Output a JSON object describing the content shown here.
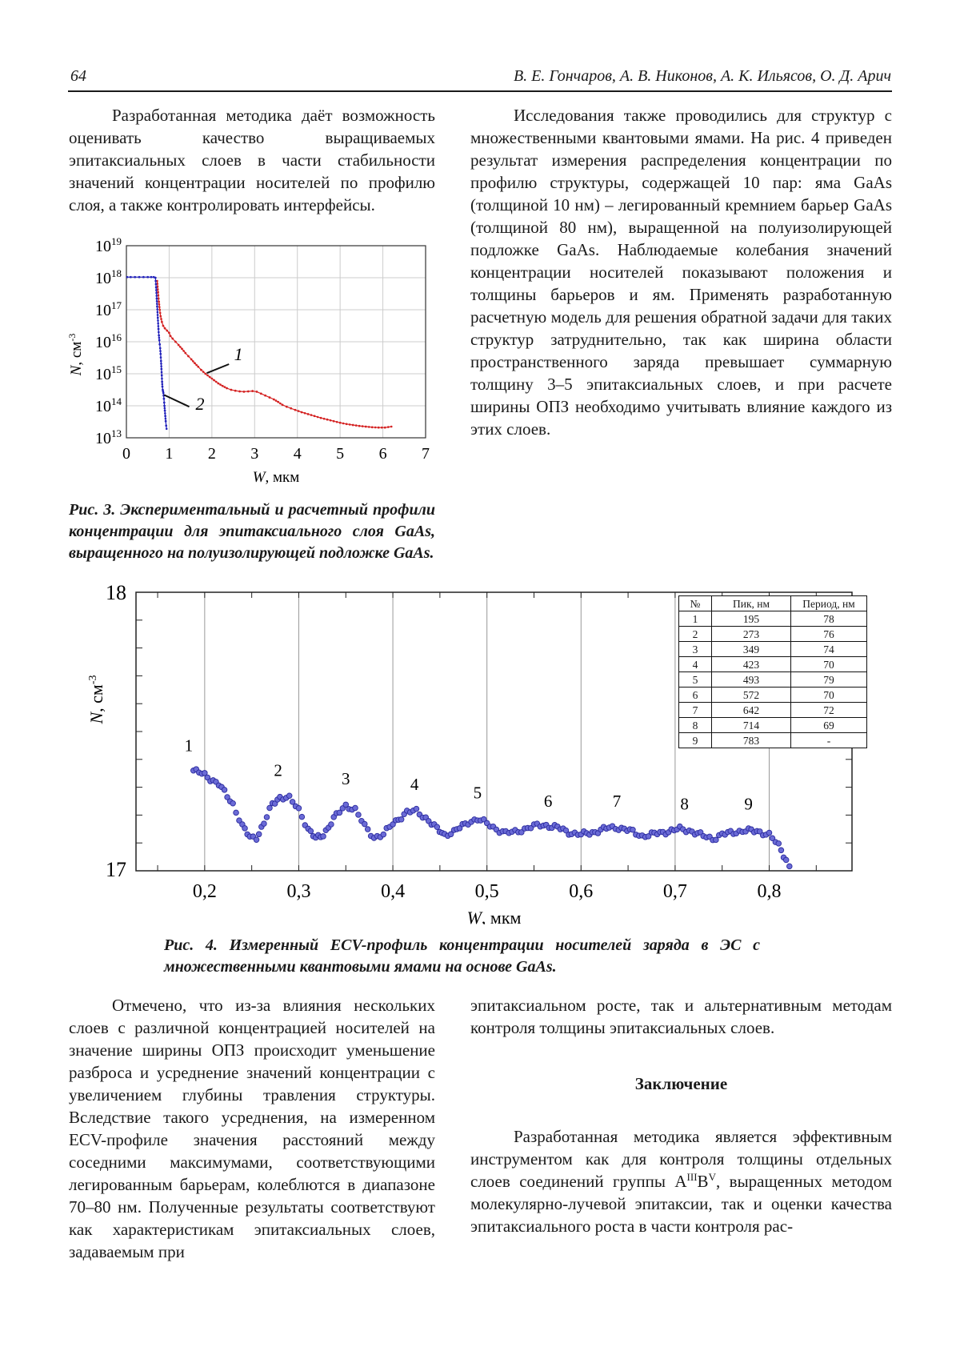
{
  "header": {
    "page_number": "64",
    "authors": "В. Е. Гончаров, А. В. Никонов, А. К. Ильясов, О. Д. Арич"
  },
  "sections": {
    "left_top": {
      "text": "Разработанная методика даёт возможность оценивать качество выращиваемых эпитаксиальных слоев в части стабильности значений концентрации носителей по профилю слоя, а также контролировать интерфейсы."
    },
    "right_top": {
      "text": "Исследования также проводились для структур с множественными квантовыми ямами. На рис. 4 приведен результат измерения распределения концентрации по профилю структуры, содержащей 10 пар: яма GaAs (толщиной 10 нм) – легированный кремнием барьер GaAs (толщиной 80 нм), выращенной на полуизолирующей подложке GaAs. Наблюдаемые колебания значений концентрации носителей показывают положения и толщины барьеров и ям. Применять разработанную расчетную модель для решения обратной задачи для таких структур затруднительно, так как ширина области пространственного заряда превышает суммарную толщину 3–5 эпитаксиальных слоев, и при расчете ширины ОПЗ необходимо учитывать влияние каждого из этих слоев."
    },
    "fig3_caption": "Рис. 3. Экспериментальный и расчетный профили концентрации для эпитаксиального слоя GaAs, выращенного на полуизолирующей подложке GaAs.",
    "fig4_caption": "Рис. 4. Измеренный ECV-профиль концентрации носителей заряда в ЭС с множественными квантовыми ямами на основе GaAs.",
    "left_bottom": {
      "text": "Отмечено, что из-за влияния нескольких слоев с различной концентрацией носителей на значение ширины ОПЗ происходит уменьшение разброса и усреднение значений концентрации с увеличением глубины травления структуры. Вследствие такого усреднения, на измеренном ECV-профиле значения расстояний между соседними максимумами, соответствующими легированным барьерам, колеблются в диапазоне 70–80 нм. Полученные результаты соответствуют как характеристикам эпитаксиальных слоев, задаваемым при"
    },
    "right_bottom_cont": {
      "text": "эпитаксиальном росте, так и альтернативным методам контроля толщины эпитаксиальных слоев."
    },
    "conclusion": {
      "heading": "Заключение",
      "pre": "Разработанная методика является эффективным инструментом как для контроля толщины отдельных слоев соединений группы А",
      "sup1": "III",
      "mid": "В",
      "sup2": "V",
      "post": ", выращенных методом молекулярно-лучевой эпитаксии, так и оценки качества эпитаксиального роста в части контроля рас-"
    }
  },
  "chart_data": [
    {
      "id": "fig3",
      "type": "line",
      "title": "Экспериментальный и расчетный профили концентрации (эпитаксиальный слой GaAs)",
      "xlabel": "W, мкм",
      "ylabel": "N, см⁻³",
      "xlabel_parts": {
        "italic": "W",
        "normal": ", мкм"
      },
      "ylabel_parts": {
        "italic": "N",
        "normal": ", см",
        "sup": "-3"
      },
      "xlim": [
        0,
        7
      ],
      "x_ticks": [
        0,
        1,
        2,
        3,
        4,
        5,
        6,
        7
      ],
      "ylog_exponents": [
        19,
        18,
        17,
        16,
        15,
        14,
        13
      ],
      "grid": true,
      "grid_color": "#cccccc",
      "series": [
        {
          "name": "1",
          "color": "#d42222",
          "points_x_logN": [
            [
              0.72,
              17.9
            ],
            [
              0.74,
              17.55
            ],
            [
              0.76,
              17.25
            ],
            [
              0.78,
              17.0
            ],
            [
              0.8,
              16.8
            ],
            [
              0.83,
              16.62
            ],
            [
              0.86,
              16.5
            ],
            [
              0.9,
              16.42
            ],
            [
              0.95,
              16.35
            ],
            [
              1.0,
              16.28
            ],
            [
              1.03,
              16.18
            ],
            [
              1.08,
              16.1
            ],
            [
              1.15,
              16.0
            ],
            [
              1.22,
              15.9
            ],
            [
              1.3,
              15.78
            ],
            [
              1.38,
              15.65
            ],
            [
              1.45,
              15.55
            ],
            [
              1.52,
              15.45
            ],
            [
              1.6,
              15.33
            ],
            [
              1.68,
              15.22
            ],
            [
              1.75,
              15.12
            ],
            [
              1.85,
              15.0
            ],
            [
              1.95,
              14.9
            ],
            [
              2.05,
              14.8
            ],
            [
              2.15,
              14.7
            ],
            [
              2.25,
              14.62
            ],
            [
              2.35,
              14.55
            ],
            [
              2.45,
              14.5
            ],
            [
              2.55,
              14.47
            ],
            [
              2.65,
              14.45
            ],
            [
              2.75,
              14.44
            ],
            [
              2.85,
              14.45
            ],
            [
              2.95,
              14.46
            ],
            [
              3.05,
              14.44
            ],
            [
              3.15,
              14.38
            ],
            [
              3.25,
              14.32
            ],
            [
              3.35,
              14.26
            ],
            [
              3.45,
              14.2
            ],
            [
              3.55,
              14.12
            ],
            [
              3.65,
              14.03
            ],
            [
              3.75,
              13.97
            ],
            [
              3.85,
              13.92
            ],
            [
              3.95,
              13.87
            ],
            [
              4.1,
              13.8
            ],
            [
              4.25,
              13.74
            ],
            [
              4.4,
              13.68
            ],
            [
              4.55,
              13.62
            ],
            [
              4.7,
              13.57
            ],
            [
              4.85,
              13.52
            ],
            [
              5.0,
              13.47
            ],
            [
              5.15,
              13.43
            ],
            [
              5.3,
              13.4
            ],
            [
              5.45,
              13.37
            ],
            [
              5.6,
              13.35
            ],
            [
              5.75,
              13.33
            ],
            [
              5.9,
              13.32
            ],
            [
              6.05,
              13.32
            ],
            [
              6.2,
              13.35
            ]
          ]
        },
        {
          "name": "2",
          "color": "#2222bb",
          "points_x_logN": [
            [
              0.02,
              18.02
            ],
            [
              0.1,
              18.02
            ],
            [
              0.2,
              18.02
            ],
            [
              0.3,
              18.02
            ],
            [
              0.4,
              18.02
            ],
            [
              0.5,
              18.02
            ],
            [
              0.58,
              18.02
            ],
            [
              0.64,
              18.02
            ],
            [
              0.68,
              18.0
            ],
            [
              0.695,
              17.7
            ],
            [
              0.71,
              17.35
            ],
            [
              0.72,
              17.1
            ],
            [
              0.735,
              16.75
            ],
            [
              0.75,
              16.4
            ],
            [
              0.76,
              16.2
            ],
            [
              0.77,
              16.05
            ],
            [
              0.78,
              15.92
            ],
            [
              0.79,
              15.8
            ],
            [
              0.8,
              15.62
            ],
            [
              0.81,
              15.4
            ],
            [
              0.82,
              15.15
            ],
            [
              0.828,
              14.95
            ],
            [
              0.835,
              14.75
            ],
            [
              0.842,
              14.6
            ],
            [
              0.85,
              14.5
            ],
            [
              0.858,
              14.45
            ],
            [
              0.865,
              14.4
            ],
            [
              0.872,
              14.32
            ],
            [
              0.878,
              14.22
            ],
            [
              0.885,
              14.1
            ],
            [
              0.89,
              14.0
            ],
            [
              0.9,
              13.85
            ],
            [
              0.91,
              13.68
            ],
            [
              0.92,
              13.52
            ],
            [
              0.93,
              13.38
            ],
            [
              0.94,
              13.28
            ]
          ]
        }
      ],
      "annotations": [
        {
          "label": "1",
          "label_at": [
            2.52,
            15.42
          ],
          "line": [
            [
              2.4,
              15.3
            ],
            [
              1.88,
              15.02
            ]
          ]
        },
        {
          "label": "2",
          "label_at": [
            1.62,
            13.88
          ],
          "line": [
            [
              1.47,
              13.97
            ],
            [
              0.88,
              14.34
            ]
          ]
        }
      ]
    },
    {
      "id": "fig4",
      "type": "scatter",
      "title": "Измеренный ECV-профиль концентрации носителей заряда",
      "xlabel": "W, мкм",
      "ylabel": "N, см⁻³",
      "xlabel_parts": {
        "italic": "W",
        "normal": ", мкм"
      },
      "ylabel_parts": {
        "italic": "N",
        "normal": ", см",
        "sup": "-3"
      },
      "xlim": [
        0.127,
        0.888
      ],
      "ylim_log": [
        17,
        18
      ],
      "x_ticks": [
        0.2,
        0.3,
        0.4,
        0.5,
        0.6,
        0.7,
        0.8
      ],
      "x_tick_labels": [
        "0,2",
        "0,3",
        "0,4",
        "0,5",
        "0,6",
        "0,7",
        "0,8"
      ],
      "y_tick_labels": [
        "18",
        "17"
      ],
      "marker_color": "#6b6bd6",
      "marker_edge": "#2b2b9e",
      "grid_color": "#999999",
      "profile_control_points_x_logN": [
        [
          0.188,
          17.36
        ],
        [
          0.2,
          17.345
        ],
        [
          0.215,
          17.31
        ],
        [
          0.23,
          17.24
        ],
        [
          0.24,
          17.16
        ],
        [
          0.248,
          17.12
        ],
        [
          0.255,
          17.12
        ],
        [
          0.263,
          17.17
        ],
        [
          0.272,
          17.24
        ],
        [
          0.28,
          17.265
        ],
        [
          0.29,
          17.26
        ],
        [
          0.3,
          17.22
        ],
        [
          0.31,
          17.15
        ],
        [
          0.318,
          17.115
        ],
        [
          0.326,
          17.13
        ],
        [
          0.34,
          17.2
        ],
        [
          0.35,
          17.235
        ],
        [
          0.36,
          17.22
        ],
        [
          0.37,
          17.16
        ],
        [
          0.38,
          17.12
        ],
        [
          0.39,
          17.13
        ],
        [
          0.4,
          17.17
        ],
        [
          0.415,
          17.21
        ],
        [
          0.425,
          17.215
        ],
        [
          0.435,
          17.19
        ],
        [
          0.447,
          17.15
        ],
        [
          0.455,
          17.13
        ],
        [
          0.465,
          17.14
        ],
        [
          0.48,
          17.175
        ],
        [
          0.49,
          17.185
        ],
        [
          0.5,
          17.17
        ],
        [
          0.51,
          17.15
        ],
        [
          0.52,
          17.135
        ],
        [
          0.53,
          17.14
        ],
        [
          0.55,
          17.16
        ],
        [
          0.56,
          17.165
        ],
        [
          0.575,
          17.155
        ],
        [
          0.59,
          17.135
        ],
        [
          0.6,
          17.13
        ],
        [
          0.615,
          17.14
        ],
        [
          0.63,
          17.155
        ],
        [
          0.64,
          17.155
        ],
        [
          0.655,
          17.14
        ],
        [
          0.665,
          17.125
        ],
        [
          0.675,
          17.13
        ],
        [
          0.69,
          17.14
        ],
        [
          0.705,
          17.15
        ],
        [
          0.715,
          17.145
        ],
        [
          0.73,
          17.125
        ],
        [
          0.74,
          17.115
        ],
        [
          0.75,
          17.13
        ],
        [
          0.765,
          17.14
        ],
        [
          0.775,
          17.145
        ],
        [
          0.79,
          17.14
        ],
        [
          0.8,
          17.13
        ],
        [
          0.81,
          17.09
        ],
        [
          0.818,
          17.04
        ],
        [
          0.825,
          16.99
        ],
        [
          0.832,
          16.94
        ]
      ],
      "peak_labels": [
        {
          "n": "1",
          "x": 0.183,
          "y": 17.43
        },
        {
          "n": "2",
          "x": 0.278,
          "y": 17.34
        },
        {
          "n": "3",
          "x": 0.35,
          "y": 17.31
        },
        {
          "n": "4",
          "x": 0.423,
          "y": 17.29
        },
        {
          "n": "5",
          "x": 0.49,
          "y": 17.26
        },
        {
          "n": "6",
          "x": 0.565,
          "y": 17.23
        },
        {
          "n": "7",
          "x": 0.638,
          "y": 17.23
        },
        {
          "n": "8",
          "x": 0.71,
          "y": 17.22
        },
        {
          "n": "9",
          "x": 0.778,
          "y": 17.22
        }
      ],
      "inset_table": {
        "headers": [
          "№",
          "Пик, нм",
          "Период, нм"
        ],
        "rows": [
          [
            "1",
            "195",
            "78"
          ],
          [
            "2",
            "273",
            "76"
          ],
          [
            "3",
            "349",
            "74"
          ],
          [
            "4",
            "423",
            "70"
          ],
          [
            "5",
            "493",
            "79"
          ],
          [
            "6",
            "572",
            "70"
          ],
          [
            "7",
            "642",
            "72"
          ],
          [
            "8",
            "714",
            "69"
          ],
          [
            "9",
            "783",
            "-"
          ]
        ]
      }
    }
  ]
}
